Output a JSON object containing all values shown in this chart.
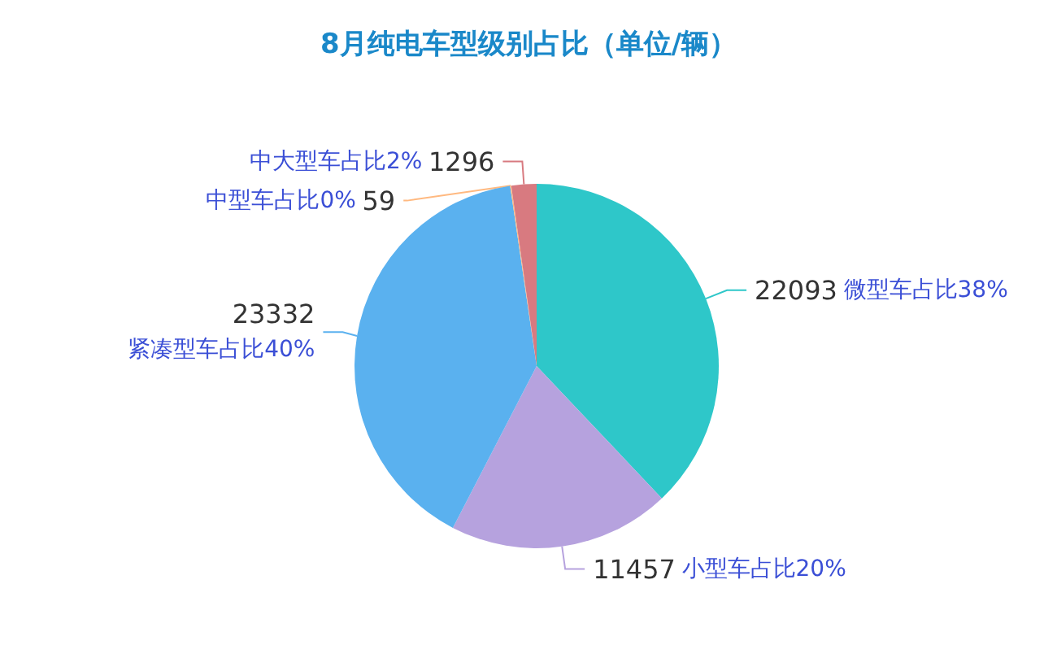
{
  "chart_data": {
    "type": "pie",
    "title": "8月纯电车型级别占比（单位/辆）",
    "categories": [
      "微型车占比38%",
      "小型车占比20%",
      "紧凑型车占比40%",
      "中型车占比0%",
      "中大型车占比2%"
    ],
    "values": [
      22093,
      11457,
      23332,
      59,
      1296
    ],
    "colors": [
      "#2ec7c9",
      "#b6a2de",
      "#5ab1ef",
      "#ffb980",
      "#d87a80"
    ],
    "data_labels": true,
    "legend": false
  }
}
